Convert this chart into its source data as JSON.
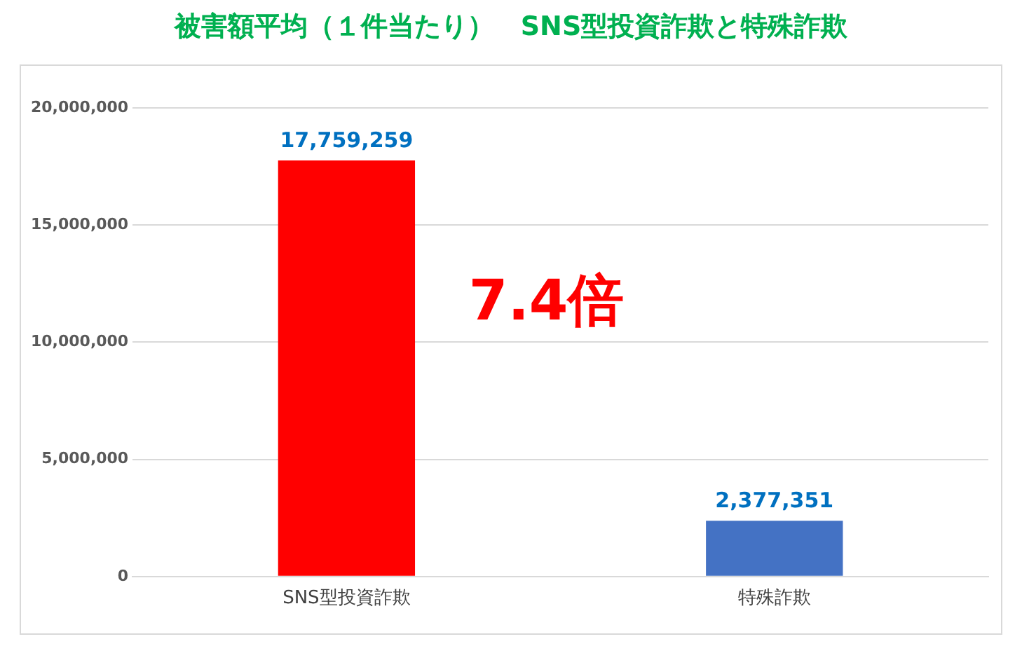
{
  "chart_data": {
    "type": "bar",
    "title": "被害額平均（１件当たり）　SNS型投資詐欺と特殊詐欺",
    "categories": [
      "SNS型投資詐欺",
      "特殊詐欺"
    ],
    "values": [
      17759259,
      2377351
    ],
    "value_labels": [
      "17,759,259",
      "2,377,351"
    ],
    "colors": [
      "#ff0000",
      "#4472c4"
    ],
    "ylim": [
      0,
      20000000
    ],
    "yticks": [
      0,
      {
        "value": 5000000,
        "label": "5,000,000"
      },
      {
        "value": 10000000,
        "label": "10,000,000"
      },
      {
        "value": 15000000,
        "label": "15,000,000"
      },
      {
        "value": 20000000,
        "label": "20,000,000"
      }
    ],
    "grid": "y",
    "legend": false,
    "annotations": [
      "7.4倍"
    ]
  }
}
